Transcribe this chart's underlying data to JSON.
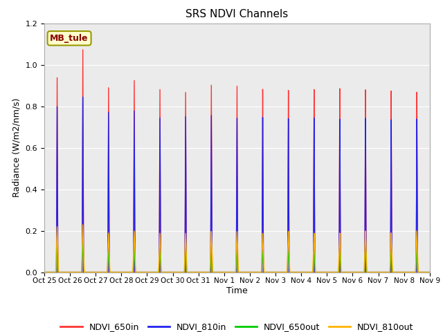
{
  "title": "SRS NDVI Channels",
  "xlabel": "Time",
  "ylabel": "Radiance (W/m2/nm/s)",
  "annotation_text": "MB_tule",
  "annotation_color": "#8B0000",
  "annotation_bg": "#FFFFCC",
  "annotation_border": "#999900",
  "ylim": [
    0.0,
    1.2
  ],
  "yticks": [
    0.0,
    0.2,
    0.4,
    0.6,
    0.8,
    1.0,
    1.2
  ],
  "legend": [
    "NDVI_650in",
    "NDVI_810in",
    "NDVI_650out",
    "NDVI_810out"
  ],
  "legend_colors": [
    "#FF3333",
    "#2222EE",
    "#00CC00",
    "#FFB300"
  ],
  "x_tick_labels": [
    "Oct 25",
    "Oct 26",
    "Oct 27",
    "Oct 28",
    "Oct 29",
    "Oct 30",
    "Oct 31",
    "Nov 1",
    "Nov 2",
    "Nov 3",
    "Nov 4",
    "Nov 5",
    "Nov 6",
    "Nov 7",
    "Nov 8",
    "Nov 9"
  ],
  "num_cycles": 15,
  "peaks_650in": [
    0.94,
    1.08,
    0.9,
    0.94,
    0.9,
    0.89,
    0.93,
    0.93,
    0.91,
    0.9,
    0.9,
    0.9,
    0.89,
    0.88,
    0.87
  ],
  "peaks_810in": [
    0.8,
    0.85,
    0.78,
    0.79,
    0.76,
    0.77,
    0.78,
    0.77,
    0.77,
    0.76,
    0.76,
    0.75,
    0.75,
    0.74,
    0.74
  ],
  "peaks_650out": [
    0.13,
    0.14,
    0.1,
    0.12,
    0.1,
    0.1,
    0.11,
    0.1,
    0.1,
    0.1,
    0.1,
    0.1,
    0.1,
    0.1,
    0.11
  ],
  "peaks_810out": [
    0.22,
    0.23,
    0.19,
    0.2,
    0.19,
    0.19,
    0.2,
    0.2,
    0.19,
    0.2,
    0.19,
    0.19,
    0.2,
    0.19,
    0.2
  ]
}
